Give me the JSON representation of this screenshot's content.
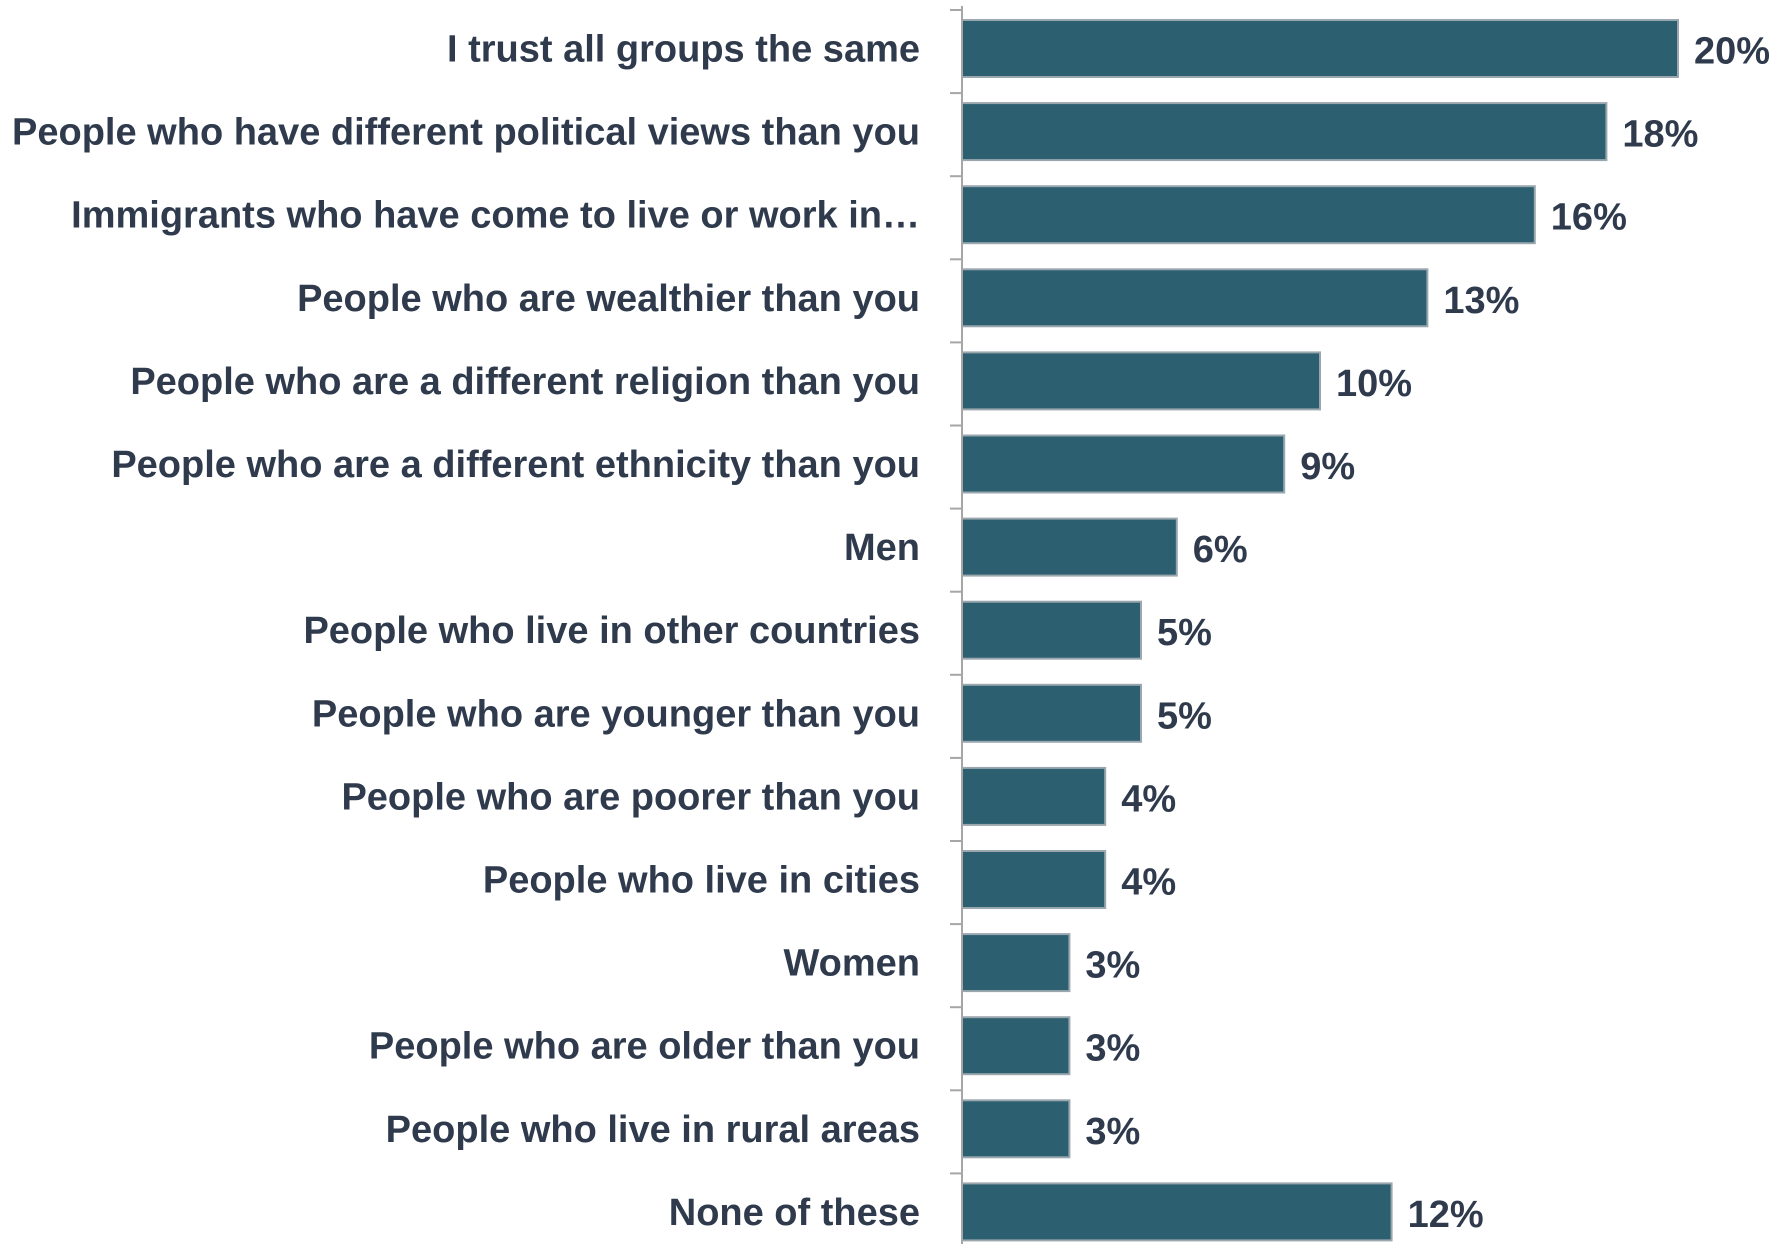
{
  "colors": {
    "bar_fill": "#2c5f70",
    "bar_stroke": "#9aa7ae",
    "text": "#2f3b4d",
    "axis": "#a6a6a6"
  },
  "chart_data": {
    "type": "bar",
    "orientation": "horizontal",
    "grid": false,
    "xlim": [
      0,
      20
    ],
    "categories": [
      "I trust all groups the same",
      "People who have different political views than you",
      "Immigrants who have come to live or work in…",
      "People who are wealthier than you",
      "People who are a different religion than you",
      "People who are a different ethnicity than you",
      "Men",
      "People who live in other countries",
      "People who are younger than you",
      "People who are poorer than you",
      "People who live in cities",
      "Women",
      "People who are older than you",
      "People who live in rural areas",
      "None of these"
    ],
    "values": [
      20,
      18,
      16,
      13,
      10,
      9,
      6,
      5,
      5,
      4,
      4,
      3,
      3,
      3,
      12
    ],
    "value_labels": [
      "20%",
      "18%",
      "16%",
      "13%",
      "10%",
      "9%",
      "6%",
      "5%",
      "5%",
      "4%",
      "4%",
      "3%",
      "3%",
      "3%",
      "12%"
    ]
  }
}
